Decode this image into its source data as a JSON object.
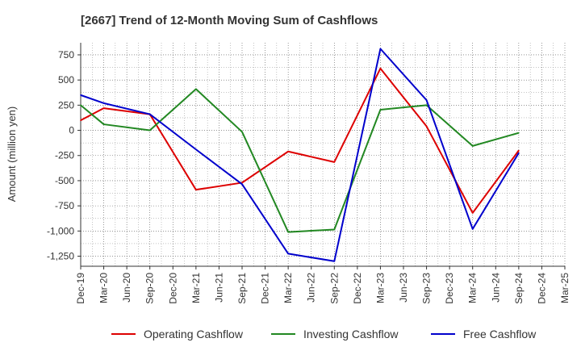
{
  "chart_data": {
    "type": "line",
    "title": "[2667]  Trend of 12-Month Moving Sum of Cashflows",
    "ylabel": "Amount (million yen)",
    "xlabel": "",
    "ylim": [
      -1350,
      870
    ],
    "yticks": [
      750,
      500,
      250,
      0,
      -250,
      -500,
      -750,
      -1000,
      -1250
    ],
    "ytick_labels": [
      "750",
      "500",
      "250",
      "0",
      "-250",
      "-500",
      "-750",
      "-1,000",
      "-1,250"
    ],
    "categories": [
      "Dec-19",
      "Mar-20",
      "Jun-20",
      "Sep-20",
      "Dec-20",
      "Mar-21",
      "Jun-21",
      "Sep-21",
      "Dec-21",
      "Mar-22",
      "Jun-22",
      "Sep-22",
      "Dec-22",
      "Mar-23",
      "Jun-23",
      "Sep-23",
      "Dec-23",
      "Mar-24",
      "Jun-24",
      "Sep-24",
      "Dec-24",
      "Mar-25"
    ],
    "grid": true,
    "legend_position": "bottom",
    "series": [
      {
        "name": "Operating Cashflow",
        "color": "#dd0000",
        "values": [
          100,
          220,
          null,
          160,
          null,
          -590,
          null,
          -520,
          null,
          -210,
          null,
          -315,
          null,
          615,
          null,
          40,
          null,
          -820,
          null,
          -200,
          null,
          null
        ]
      },
      {
        "name": "Investing Cashflow",
        "color": "#228822",
        "values": [
          250,
          60,
          null,
          0,
          null,
          410,
          null,
          -15,
          null,
          -1010,
          null,
          -985,
          null,
          205,
          null,
          250,
          null,
          -155,
          null,
          -25,
          null,
          null
        ]
      },
      {
        "name": "Free Cashflow",
        "color": "#0000cc",
        "values": [
          350,
          270,
          null,
          160,
          null,
          -190,
          null,
          -535,
          null,
          -1225,
          null,
          -1300,
          null,
          810,
          null,
          300,
          null,
          -980,
          null,
          -225,
          null,
          null
        ]
      }
    ]
  }
}
